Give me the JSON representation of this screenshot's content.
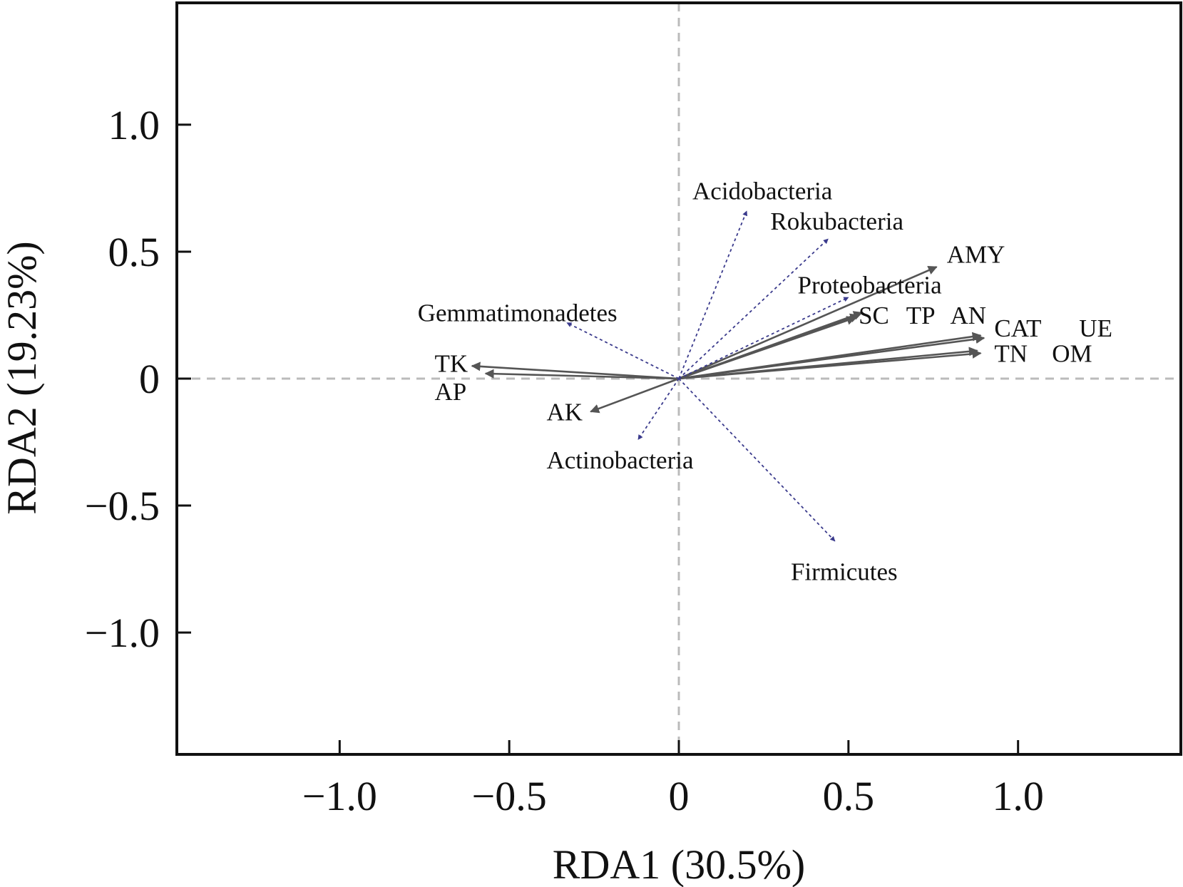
{
  "chart_data": {
    "type": "scatter",
    "subtype": "rda-biplot",
    "title": "",
    "xlabel": "RDA1 (30.5%)",
    "ylabel": "RDA2 (19.23%)",
    "xlim": [
      -1.48,
      1.48
    ],
    "ylim": [
      -1.48,
      1.48
    ],
    "x_ticks": [
      -1.0,
      -0.5,
      0,
      0.5,
      1.0
    ],
    "x_tick_labels": [
      "−1.0",
      "−0.5",
      "0",
      "0.5",
      "1.0"
    ],
    "y_ticks": [
      1.0,
      0.5,
      0,
      -0.5,
      -1.0
    ],
    "y_tick_labels": [
      "1.0",
      "0.5",
      "0",
      "−0.5",
      "−1.0"
    ],
    "reference_lines": {
      "x": 0,
      "y": 0,
      "style": "dashed"
    },
    "grid": false,
    "colors": {
      "env_vector": "#555555",
      "species_vector": "#3a3a8c",
      "reference_line": "#bbbbbb"
    },
    "series": [
      {
        "group": "environmental",
        "line_style": "solid",
        "points": [
          {
            "label": "TK",
            "x": -0.61,
            "y": 0.05,
            "label_x": -0.72,
            "label_y": 0.06
          },
          {
            "label": "AP",
            "x": -0.57,
            "y": 0.02,
            "label_x": -0.72,
            "label_y": -0.05
          },
          {
            "label": "AK",
            "x": -0.26,
            "y": -0.13,
            "label_x": -0.39,
            "label_y": -0.13
          },
          {
            "label": "AMY",
            "x": 0.76,
            "y": 0.44,
            "label_x": 0.79,
            "label_y": 0.49
          },
          {
            "label": "SC",
            "x": 0.52,
            "y": 0.24,
            "label_x": 0.53,
            "label_y": 0.25
          },
          {
            "label": "TP",
            "x": 0.53,
            "y": 0.25,
            "label_x": 0.67,
            "label_y": 0.25
          },
          {
            "label": "AN",
            "x": 0.54,
            "y": 0.26,
            "label_x": 0.8,
            "label_y": 0.25
          },
          {
            "label": "CAT",
            "x": 0.89,
            "y": 0.17,
            "label_x": 0.93,
            "label_y": 0.2
          },
          {
            "label": "UE",
            "x": 0.9,
            "y": 0.16,
            "label_x": 1.18,
            "label_y": 0.2
          },
          {
            "label": "TN",
            "x": 0.88,
            "y": 0.11,
            "label_x": 0.93,
            "label_y": 0.1
          },
          {
            "label": "OM",
            "x": 0.89,
            "y": 0.1,
            "label_x": 1.1,
            "label_y": 0.1
          }
        ]
      },
      {
        "group": "species",
        "line_style": "dotted",
        "points": [
          {
            "label": "Acidobacteria",
            "x": 0.2,
            "y": 0.66,
            "label_x": 0.04,
            "label_y": 0.74
          },
          {
            "label": "Rokubacteria",
            "x": 0.44,
            "y": 0.55,
            "label_x": 0.27,
            "label_y": 0.62
          },
          {
            "label": "Proteobacteria",
            "x": 0.5,
            "y": 0.32,
            "label_x": 0.35,
            "label_y": 0.37
          },
          {
            "label": "Gemmatimonadetes",
            "x": -0.33,
            "y": 0.22,
            "label_x": -0.77,
            "label_y": 0.26
          },
          {
            "label": "Actinobacteria",
            "x": -0.12,
            "y": -0.24,
            "label_x": -0.39,
            "label_y": -0.32
          },
          {
            "label": "Firmicutes",
            "x": 0.46,
            "y": -0.64,
            "label_x": 0.33,
            "label_y": -0.76
          }
        ]
      }
    ]
  }
}
